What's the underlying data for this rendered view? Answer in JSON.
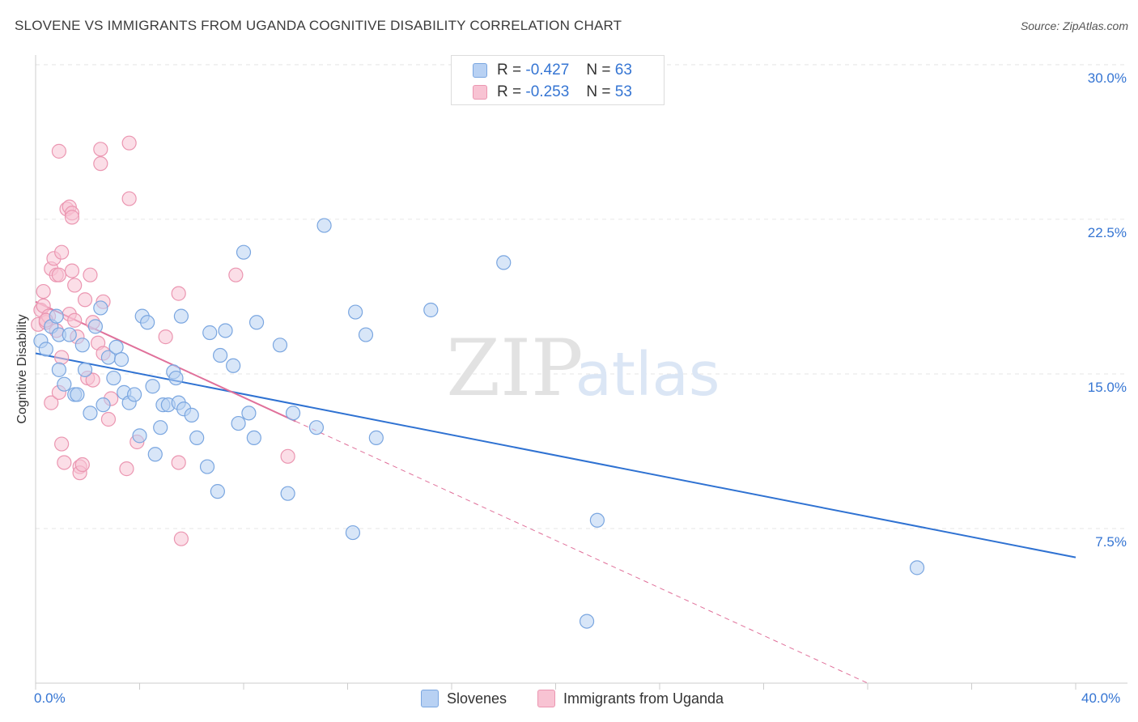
{
  "title": "SLOVENE VS IMMIGRANTS FROM UGANDA COGNITIVE DISABILITY CORRELATION CHART",
  "source": "Source: ZipAtlas.com",
  "watermark": {
    "zip": "ZIP",
    "atlas": "atlas"
  },
  "legend": {
    "r_label": "R =",
    "n_label": "N =",
    "slovenes": {
      "r": "-0.427",
      "n": "63"
    },
    "uganda": {
      "r": "-0.253",
      "n": "53"
    }
  },
  "chart_data": {
    "type": "scatter",
    "title": "SLOVENE VS IMMIGRANTS FROM UGANDA COGNITIVE DISABILITY CORRELATION CHART",
    "xlabel": "",
    "ylabel": "Cognitive Disability",
    "xlim": [
      0,
      40
    ],
    "ylim": [
      0,
      32
    ],
    "x_tick_labels": [
      "0.0%",
      "40.0%"
    ],
    "y_ticks": [
      7.5,
      15.0,
      22.5,
      30.0
    ],
    "y_tick_labels": [
      "7.5%",
      "15.0%",
      "22.5%",
      "30.0%"
    ],
    "grid": "horizontal dashed",
    "legend_position": "top-center",
    "colors": {
      "slovenes_fill": "#b8d1f3",
      "slovenes_stroke": "#7aa6e0",
      "slovenes_line": "#2f72d2",
      "uganda_fill": "#f8c3d3",
      "uganda_stroke": "#eb96b1",
      "uganda_line": "#e0709a"
    },
    "series": [
      {
        "name": "Slovenes",
        "points": [
          [
            0.2,
            16.6
          ],
          [
            0.4,
            16.2
          ],
          [
            0.6,
            17.3
          ],
          [
            0.8,
            17.8
          ],
          [
            0.9,
            16.9
          ],
          [
            0.9,
            15.2
          ],
          [
            1.1,
            14.5
          ],
          [
            1.3,
            16.9
          ],
          [
            1.5,
            14.0
          ],
          [
            1.6,
            14.0
          ],
          [
            1.8,
            16.4
          ],
          [
            1.9,
            15.2
          ],
          [
            2.1,
            13.1
          ],
          [
            2.3,
            17.3
          ],
          [
            2.5,
            18.2
          ],
          [
            2.6,
            13.5
          ],
          [
            2.8,
            15.8
          ],
          [
            3.0,
            14.8
          ],
          [
            3.1,
            16.3
          ],
          [
            3.3,
            15.7
          ],
          [
            3.4,
            14.1
          ],
          [
            3.6,
            13.6
          ],
          [
            3.8,
            14.0
          ],
          [
            4.0,
            12.0
          ],
          [
            4.1,
            17.8
          ],
          [
            4.3,
            17.5
          ],
          [
            4.5,
            14.4
          ],
          [
            4.6,
            11.1
          ],
          [
            4.8,
            12.4
          ],
          [
            4.9,
            13.5
          ],
          [
            5.1,
            13.5
          ],
          [
            5.3,
            15.1
          ],
          [
            5.4,
            14.8
          ],
          [
            5.5,
            13.6
          ],
          [
            5.6,
            17.8
          ],
          [
            5.7,
            13.3
          ],
          [
            6.0,
            13.0
          ],
          [
            6.2,
            11.9
          ],
          [
            6.6,
            10.5
          ],
          [
            6.7,
            17.0
          ],
          [
            7.0,
            9.3
          ],
          [
            7.1,
            15.9
          ],
          [
            7.3,
            17.1
          ],
          [
            7.6,
            15.4
          ],
          [
            7.8,
            12.6
          ],
          [
            8.0,
            20.9
          ],
          [
            8.2,
            13.1
          ],
          [
            8.4,
            11.9
          ],
          [
            8.5,
            17.5
          ],
          [
            9.4,
            16.4
          ],
          [
            9.7,
            9.2
          ],
          [
            9.9,
            13.1
          ],
          [
            10.8,
            12.4
          ],
          [
            11.1,
            22.2
          ],
          [
            12.2,
            7.3
          ],
          [
            12.3,
            18.0
          ],
          [
            12.7,
            16.9
          ],
          [
            13.1,
            11.9
          ],
          [
            15.2,
            18.1
          ],
          [
            18.0,
            20.4
          ],
          [
            21.2,
            3.0
          ],
          [
            21.6,
            7.9
          ],
          [
            33.9,
            5.6
          ]
        ]
      },
      {
        "name": "Immigrants from Uganda",
        "points": [
          [
            0.1,
            17.4
          ],
          [
            0.2,
            18.1
          ],
          [
            0.3,
            18.3
          ],
          [
            0.3,
            19.0
          ],
          [
            0.4,
            17.5
          ],
          [
            0.5,
            17.8
          ],
          [
            0.6,
            13.6
          ],
          [
            0.6,
            20.1
          ],
          [
            0.7,
            20.6
          ],
          [
            0.8,
            17.1
          ],
          [
            0.8,
            19.8
          ],
          [
            0.9,
            14.1
          ],
          [
            0.9,
            19.8
          ],
          [
            0.9,
            25.8
          ],
          [
            1.0,
            20.9
          ],
          [
            1.0,
            15.8
          ],
          [
            1.0,
            11.6
          ],
          [
            1.1,
            10.7
          ],
          [
            1.2,
            23.0
          ],
          [
            1.3,
            23.1
          ],
          [
            1.3,
            17.9
          ],
          [
            1.4,
            22.8
          ],
          [
            1.4,
            20.0
          ],
          [
            1.4,
            22.6
          ],
          [
            1.5,
            19.3
          ],
          [
            1.5,
            17.6
          ],
          [
            1.6,
            16.8
          ],
          [
            1.7,
            10.5
          ],
          [
            1.7,
            10.2
          ],
          [
            1.8,
            10.6
          ],
          [
            1.9,
            18.6
          ],
          [
            2.0,
            14.8
          ],
          [
            2.1,
            19.8
          ],
          [
            2.2,
            17.5
          ],
          [
            2.4,
            16.5
          ],
          [
            2.5,
            25.9
          ],
          [
            2.5,
            25.2
          ],
          [
            2.6,
            18.5
          ],
          [
            2.6,
            16.0
          ],
          [
            2.8,
            12.8
          ],
          [
            2.9,
            13.8
          ],
          [
            3.5,
            10.4
          ],
          [
            3.6,
            23.5
          ],
          [
            3.6,
            26.2
          ],
          [
            3.9,
            11.7
          ],
          [
            5.0,
            16.8
          ],
          [
            5.5,
            18.9
          ],
          [
            5.5,
            10.7
          ],
          [
            5.6,
            7.0
          ],
          [
            7.7,
            19.8
          ],
          [
            9.7,
            11.0
          ],
          [
            2.2,
            14.7
          ],
          [
            0.4,
            17.6
          ]
        ]
      }
    ],
    "trendlines": [
      {
        "name": "Slovenes",
        "x": [
          0.0,
          40.0
        ],
        "y": [
          16.0,
          6.1
        ],
        "style": "solid"
      },
      {
        "name": "Immigrants from Uganda",
        "x": [
          0.0,
          10.0
        ],
        "y": [
          18.5,
          12.7
        ],
        "style": "solid"
      },
      {
        "name": "Immigrants from Uganda",
        "x": [
          10.0,
          32.0
        ],
        "y": [
          12.7,
          0.0
        ],
        "style": "dashed"
      }
    ]
  }
}
